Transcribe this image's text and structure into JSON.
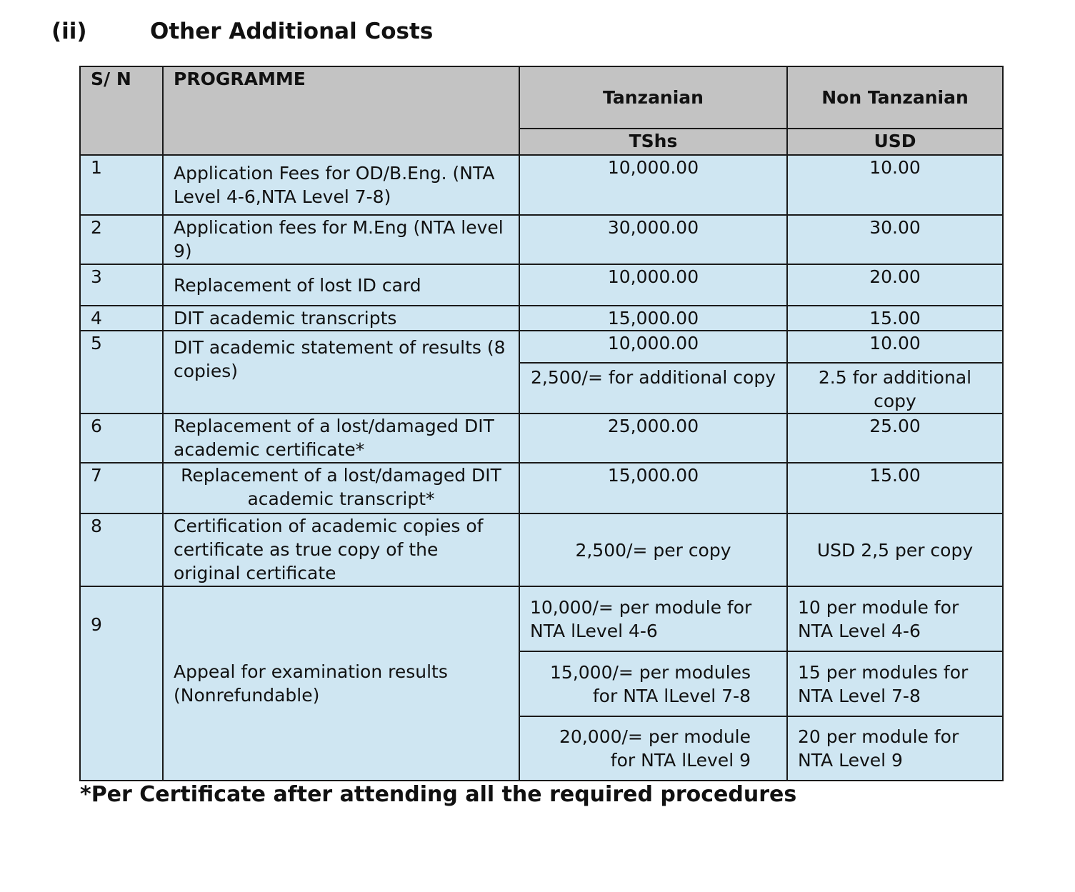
{
  "heading": {
    "number": "(ii)",
    "title": "Other Additional Costs"
  },
  "table": {
    "headers": {
      "sn": "S/ N",
      "programme": "PROGRAMME",
      "tanzanian": "Tanzanian",
      "non_tanzanian": "Non Tanzanian",
      "tanzanian_unit": "TShs",
      "non_tanzanian_unit": "USD"
    },
    "rows": [
      {
        "sn": "1",
        "programme": "Application Fees for OD/B.Eng. (NTA Level 4-6,NTA Level 7-8)",
        "tshs": "10,000.00",
        "usd": "10.00"
      },
      {
        "sn": "2",
        "programme": "Application fees for M.Eng (NTA level 9)",
        "tshs": "30,000.00",
        "usd": "30.00"
      },
      {
        "sn": "3",
        "programme": "Replacement of lost ID card",
        "tshs": "10,000.00",
        "usd": "20.00"
      },
      {
        "sn": "4",
        "programme": "DIT academic transcripts",
        "tshs": "15,000.00",
        "usd": "15.00"
      },
      {
        "sn": "5",
        "programme": "DIT academic statement of results (8 copies)",
        "tshs": "10,000.00",
        "usd": "10.00",
        "tshs_extra": "2,500/= for additional copy",
        "usd_extra": "2.5 for additional copy"
      },
      {
        "sn": "6",
        "programme": "Replacement of a lost/damaged DIT academic certificate*",
        "tshs": "25,000.00",
        "usd": "25.00"
      },
      {
        "sn": "7",
        "programme": "Replacement of a lost/damaged DIT academic transcript*",
        "tshs": "15,000.00",
        "usd": "15.00"
      },
      {
        "sn": "8",
        "programme": "Certification of academic copies of certificate as true copy of the original certificate",
        "tshs": "2,500/= per copy",
        "usd": "USD 2,5 per copy"
      },
      {
        "sn": "9",
        "programme": "Appeal for examination results (Nonrefundable)",
        "tshs_list": [
          "10,000/= per module for NTA lLevel 4-6",
          "15,000/= per modules for NTA lLevel 7-8",
          "20,000/= per module for NTA lLevel 9"
        ],
        "usd_list": [
          "10 per module for NTA Level 4-6",
          "15 per modules for NTA Level 7-8",
          "20 per module for NTA Level 9"
        ]
      }
    ]
  },
  "footnote": "*Per Certificate after attending all the required procedures"
}
